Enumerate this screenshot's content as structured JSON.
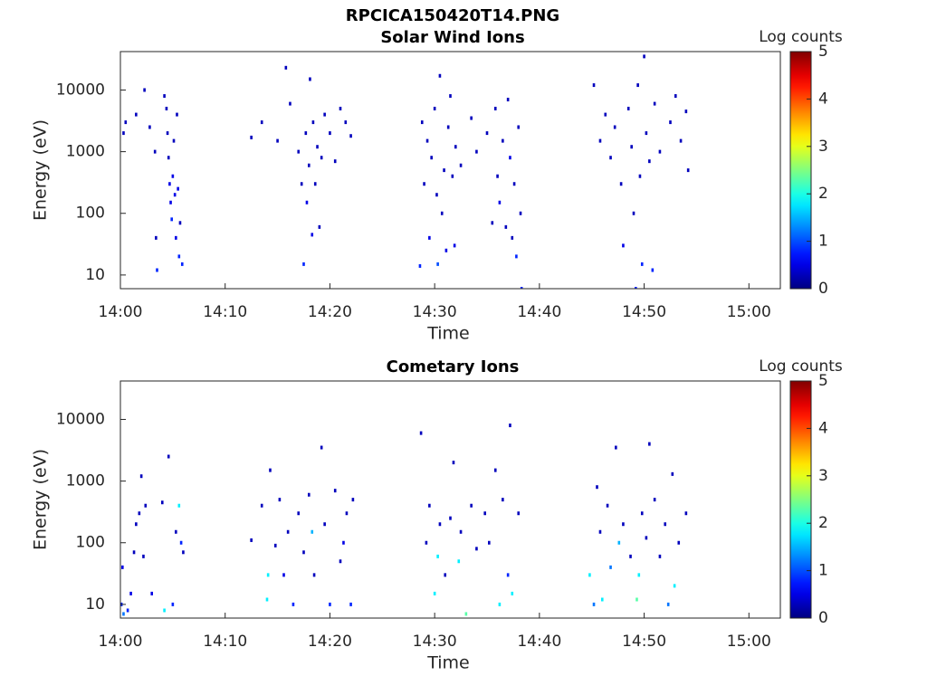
{
  "title": "RPCICA150420T14.PNG",
  "chart_data": [
    {
      "type": "heatmap",
      "title": "Solar Wind Ions",
      "xlabel": "Time",
      "ylabel": "Energy (eV)",
      "colorbar_label": "Log counts",
      "colormap": "jet",
      "log_y": true,
      "clim": [
        0,
        5
      ],
      "cticks": [
        0,
        1,
        2,
        3,
        4,
        5
      ],
      "xlim": [
        0,
        63
      ],
      "ylim": [
        6,
        42000
      ],
      "xticks": [
        {
          "value": 0,
          "label": "14:00"
        },
        {
          "value": 10,
          "label": "14:10"
        },
        {
          "value": 20,
          "label": "14:20"
        },
        {
          "value": 30,
          "label": "14:30"
        },
        {
          "value": 40,
          "label": "14:40"
        },
        {
          "value": 50,
          "label": "14:50"
        },
        {
          "value": 60,
          "label": "15:00"
        }
      ],
      "yticks": [
        10,
        100,
        1000,
        10000
      ],
      "x": [
        0.3,
        0.5,
        1.5,
        2.3,
        2.8,
        3.3,
        3.4,
        3.5,
        4.2,
        4.4,
        4.5,
        4.6,
        4.7,
        4.8,
        4.9,
        5.0,
        5.1,
        5.2,
        5.3,
        5.4,
        5.5,
        5.6,
        5.7,
        5.9,
        12.5,
        13.5,
        15.0,
        15.8,
        16.2,
        17.0,
        17.3,
        17.5,
        17.7,
        17.8,
        18.0,
        18.1,
        18.3,
        18.4,
        18.6,
        18.8,
        19.0,
        19.2,
        19.5,
        20.0,
        20.5,
        21.0,
        21.5,
        22.0,
        28.6,
        28.8,
        29.0,
        29.3,
        29.5,
        29.7,
        30.0,
        30.2,
        30.3,
        30.5,
        30.7,
        30.9,
        31.1,
        31.3,
        31.5,
        31.7,
        31.9,
        32.0,
        32.5,
        33.5,
        34.0,
        35.0,
        35.5,
        35.8,
        36.0,
        36.2,
        36.5,
        36.8,
        37.0,
        37.2,
        37.4,
        37.6,
        37.8,
        38.0,
        38.2,
        38.3,
        45.2,
        45.8,
        46.3,
        46.8,
        47.2,
        47.8,
        48.0,
        48.5,
        48.8,
        49.0,
        49.2,
        49.4,
        49.6,
        49.8,
        50.0,
        50.2,
        50.5,
        50.8,
        51.0,
        51.5,
        52.5,
        53.0,
        53.5,
        54.0,
        54.2
      ],
      "y": [
        2000,
        3000,
        4000,
        10000,
        2500,
        1000,
        40,
        12,
        8000,
        5000,
        2000,
        800,
        300,
        150,
        80,
        400,
        1500,
        200,
        40,
        4000,
        250,
        20,
        70,
        15,
        1700,
        3000,
        1500,
        23000,
        6000,
        1000,
        300,
        15,
        2000,
        150,
        600,
        15000,
        45,
        3000,
        300,
        1200,
        60,
        800,
        4000,
        2000,
        700,
        5000,
        3000,
        1800,
        14,
        3000,
        300,
        1500,
        40,
        800,
        5000,
        200,
        15,
        17000,
        100,
        500,
        25,
        2500,
        8000,
        400,
        30,
        1200,
        600,
        3500,
        1000,
        2000,
        70,
        5000,
        400,
        150,
        1500,
        60,
        7000,
        800,
        40,
        300,
        20,
        2500,
        100,
        6,
        12000,
        1500,
        4000,
        800,
        2500,
        300,
        30,
        5000,
        1200,
        100,
        6,
        12000,
        400,
        15,
        35000,
        2000,
        700,
        12,
        6000,
        1000,
        3000,
        8000,
        1500,
        4500,
        500
      ],
      "values": [
        0.3,
        0.3,
        0.3,
        0.3,
        0.3,
        0.3,
        0.3,
        0.8,
        0.3,
        0.3,
        0.3,
        0.3,
        0.5,
        0.5,
        0.8,
        0.5,
        0.3,
        0.5,
        0.5,
        0.3,
        0.5,
        0.8,
        0.3,
        0.8,
        0.3,
        0.3,
        0.3,
        0.3,
        0.3,
        0.3,
        0.3,
        0.8,
        0.3,
        0.5,
        0.3,
        0.3,
        0.5,
        0.3,
        0.3,
        0.3,
        0.3,
        0.3,
        0.3,
        0.3,
        0.3,
        0.3,
        0.3,
        0.3,
        0.8,
        0.3,
        0.3,
        0.3,
        0.5,
        0.3,
        0.3,
        0.3,
        1.0,
        0.3,
        0.3,
        0.3,
        0.5,
        0.3,
        0.3,
        0.3,
        0.5,
        0.3,
        0.3,
        0.3,
        0.3,
        0.3,
        0.3,
        0.3,
        0.3,
        0.5,
        0.3,
        0.3,
        0.3,
        0.5,
        0.3,
        0.3,
        0.8,
        0.3,
        0.3,
        0.8,
        0.3,
        0.3,
        0.3,
        0.3,
        0.3,
        0.3,
        0.5,
        0.3,
        0.3,
        0.3,
        0.8,
        0.3,
        0.3,
        0.8,
        0.3,
        0.3,
        0.3,
        0.8,
        0.3,
        0.3,
        0.3,
        0.3,
        0.3,
        0.3,
        0.3
      ]
    },
    {
      "type": "heatmap",
      "title": "Cometary Ions",
      "xlabel": "Time",
      "ylabel": "Energy (eV)",
      "colorbar_label": "Log counts",
      "colormap": "jet",
      "log_y": true,
      "clim": [
        0,
        5
      ],
      "cticks": [
        0,
        1,
        2,
        3,
        4,
        5
      ],
      "xlim": [
        0,
        63
      ],
      "ylim": [
        6,
        42000
      ],
      "xticks": [
        {
          "value": 0,
          "label": "14:00"
        },
        {
          "value": 10,
          "label": "14:10"
        },
        {
          "value": 20,
          "label": "14:20"
        },
        {
          "value": 30,
          "label": "14:30"
        },
        {
          "value": 40,
          "label": "14:40"
        },
        {
          "value": 50,
          "label": "14:50"
        },
        {
          "value": 60,
          "label": "15:00"
        }
      ],
      "yticks": [
        10,
        100,
        1000,
        10000
      ],
      "x": [
        0.1,
        0.2,
        0.3,
        0.7,
        1.0,
        1.3,
        1.5,
        1.8,
        2.0,
        2.2,
        2.4,
        3.0,
        4.0,
        4.2,
        4.6,
        5.0,
        5.3,
        5.6,
        5.8,
        6.0,
        12.5,
        13.5,
        14.0,
        14.1,
        14.3,
        14.8,
        15.2,
        15.6,
        16.0,
        16.5,
        17.0,
        17.5,
        18.0,
        18.3,
        18.5,
        19.2,
        19.5,
        20.0,
        20.5,
        21.0,
        21.3,
        21.6,
        22.0,
        22.2,
        28.7,
        29.2,
        29.5,
        30.0,
        30.3,
        30.5,
        31.0,
        31.5,
        31.8,
        32.3,
        32.5,
        33.0,
        33.5,
        34.0,
        34.8,
        35.2,
        35.8,
        36.2,
        36.5,
        37.0,
        37.2,
        37.4,
        38.0,
        44.8,
        45.2,
        45.5,
        45.8,
        46.0,
        46.5,
        46.8,
        47.3,
        47.6,
        48.0,
        48.7,
        49.3,
        49.5,
        49.8,
        50.2,
        50.5,
        51.0,
        51.5,
        52.0,
        52.3,
        52.7,
        52.9,
        53.3,
        54.0
      ],
      "y": [
        10,
        40,
        7,
        8,
        15,
        70,
        200,
        300,
        1200,
        60,
        400,
        15,
        450,
        8,
        2500,
        10,
        150,
        400,
        100,
        70,
        110,
        400,
        12,
        30,
        1500,
        90,
        500,
        30,
        150,
        10,
        300,
        70,
        600,
        150,
        30,
        3500,
        200,
        10,
        700,
        50,
        100,
        300,
        10,
        500,
        6000,
        100,
        400,
        15,
        60,
        200,
        30,
        250,
        2000,
        50,
        150,
        7,
        400,
        80,
        300,
        100,
        1500,
        10,
        500,
        30,
        8000,
        15,
        300,
        30,
        10,
        800,
        150,
        12,
        400,
        40,
        3500,
        100,
        200,
        60,
        12,
        30,
        300,
        120,
        4000,
        500,
        60,
        200,
        10,
        1300,
        20,
        100,
        300
      ],
      "values": [
        0.8,
        0.5,
        1.2,
        0.8,
        0.5,
        0.3,
        0.3,
        0.3,
        0.3,
        0.3,
        0.3,
        0.5,
        0.3,
        1.8,
        0.3,
        0.8,
        0.3,
        1.8,
        0.8,
        0.3,
        0.3,
        0.3,
        1.8,
        1.8,
        0.3,
        0.3,
        0.3,
        0.5,
        0.3,
        0.8,
        0.3,
        0.3,
        0.3,
        1.5,
        0.3,
        0.3,
        0.3,
        0.8,
        0.3,
        0.3,
        0.5,
        0.3,
        0.8,
        0.3,
        0.3,
        0.3,
        0.3,
        1.8,
        1.8,
        0.3,
        0.3,
        0.3,
        0.3,
        1.8,
        0.3,
        2.3,
        0.3,
        0.3,
        0.3,
        0.3,
        0.3,
        1.8,
        0.3,
        0.8,
        0.3,
        1.8,
        0.3,
        1.8,
        1.2,
        0.3,
        0.3,
        1.8,
        0.3,
        1.2,
        0.3,
        1.5,
        0.3,
        0.3,
        2.3,
        1.8,
        0.3,
        0.3,
        0.3,
        0.3,
        0.3,
        0.3,
        1.2,
        0.3,
        1.8,
        0.3,
        0.3
      ]
    }
  ]
}
